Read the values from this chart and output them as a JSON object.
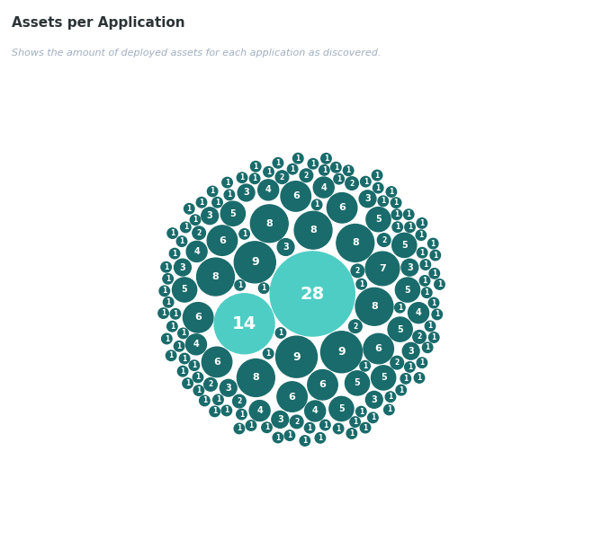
{
  "title": "Assets per Application",
  "subtitle": "Shows the amount of deployed assets for each application as discovered.",
  "title_color": "#2d3436",
  "subtitle_color": "#a0aec0",
  "bg_color": "#ffffff",
  "bubble_values": [
    28,
    14,
    9,
    9,
    9,
    8,
    8,
    8,
    8,
    8,
    8,
    7,
    6,
    6,
    6,
    6,
    6,
    6,
    6,
    6,
    5,
    5,
    5,
    5,
    5,
    5,
    5,
    5,
    5,
    4,
    4,
    4,
    4,
    4,
    4,
    4,
    3,
    3,
    3,
    3,
    3,
    3,
    3,
    3,
    3,
    3,
    2,
    2,
    2,
    2,
    2,
    2,
    2,
    2,
    2,
    2,
    2,
    2,
    1,
    1,
    1,
    1,
    1,
    1,
    1,
    1,
    1,
    1,
    1,
    1,
    1,
    1,
    1,
    1,
    1,
    1,
    1,
    1,
    1,
    1,
    1,
    1,
    1,
    1,
    1,
    1,
    1,
    1,
    1,
    1,
    1,
    1,
    1,
    1,
    1,
    1,
    1,
    1,
    1,
    1,
    1,
    1,
    1,
    1,
    1,
    1,
    1,
    1,
    1,
    1,
    1,
    1,
    1,
    1,
    1,
    1,
    1,
    1,
    1,
    1,
    1,
    1,
    1,
    1,
    1,
    1,
    1,
    1,
    1,
    1,
    1,
    1,
    1,
    1,
    1,
    1,
    1,
    1,
    1,
    1,
    1,
    1,
    1,
    1,
    1,
    1,
    1,
    1,
    1,
    1,
    1,
    1,
    1,
    1,
    1,
    1,
    1,
    1,
    1,
    1
  ],
  "dark_teal": "#1a6b6b",
  "light_teal": "#4ecdc4",
  "text_color": "#ffffff"
}
